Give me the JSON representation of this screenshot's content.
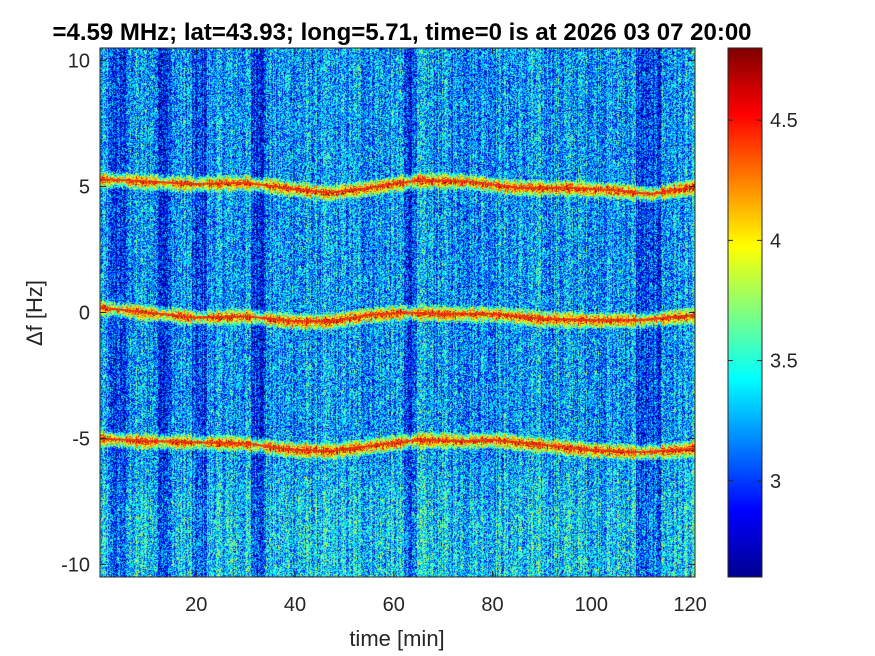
{
  "chart_data": {
    "type": "heatmap",
    "title": "=4.59 MHz;  lat=43.93; long=5.71, time=0 is at 2026 03 07 20:00",
    "xlabel": "time [min]",
    "ylabel": "Δf [Hz]",
    "xlim": [
      0.5,
      121
    ],
    "ylim": [
      -10.5,
      10.5
    ],
    "x_ticks": [
      20,
      40,
      60,
      80,
      100,
      120
    ],
    "y_ticks": [
      -10,
      -5,
      0,
      5,
      10
    ],
    "x_tick_labels": [
      "20",
      "40",
      "60",
      "80",
      "100",
      "120"
    ],
    "y_tick_labels": [
      "-10",
      "-5",
      "0",
      "5",
      "10"
    ],
    "colorbar": {
      "colormap": "jet",
      "range": [
        2.6,
        4.8
      ],
      "ticks": [
        3,
        3.5,
        4,
        4.5
      ],
      "tick_labels": [
        "3",
        "3.5",
        "4",
        "4.5"
      ]
    },
    "traces": [
      {
        "x": [
          0.5,
          10,
          20,
          30,
          40,
          47,
          55,
          65,
          75,
          85,
          95,
          105,
          112,
          121
        ],
        "y": [
          5.3,
          5.2,
          5.1,
          5.15,
          4.9,
          4.75,
          4.95,
          5.25,
          5.2,
          4.95,
          4.95,
          4.85,
          4.7,
          5.0
        ]
      },
      {
        "x": [
          0.5,
          10,
          20,
          30,
          40,
          47,
          55,
          62,
          70,
          80,
          90,
          100,
          110,
          121
        ],
        "y": [
          0.2,
          0.0,
          -0.2,
          -0.15,
          -0.35,
          -0.35,
          -0.1,
          0.0,
          -0.05,
          -0.05,
          -0.25,
          -0.3,
          -0.3,
          -0.1
        ]
      },
      {
        "x": [
          0.5,
          10,
          20,
          30,
          40,
          47,
          55,
          65,
          75,
          80,
          90,
          100,
          110,
          121
        ],
        "y": [
          -5.0,
          -5.1,
          -5.15,
          -5.2,
          -5.45,
          -5.5,
          -5.3,
          -5.05,
          -5.1,
          -5.05,
          -5.25,
          -5.45,
          -5.55,
          -5.4
        ]
      }
    ]
  }
}
